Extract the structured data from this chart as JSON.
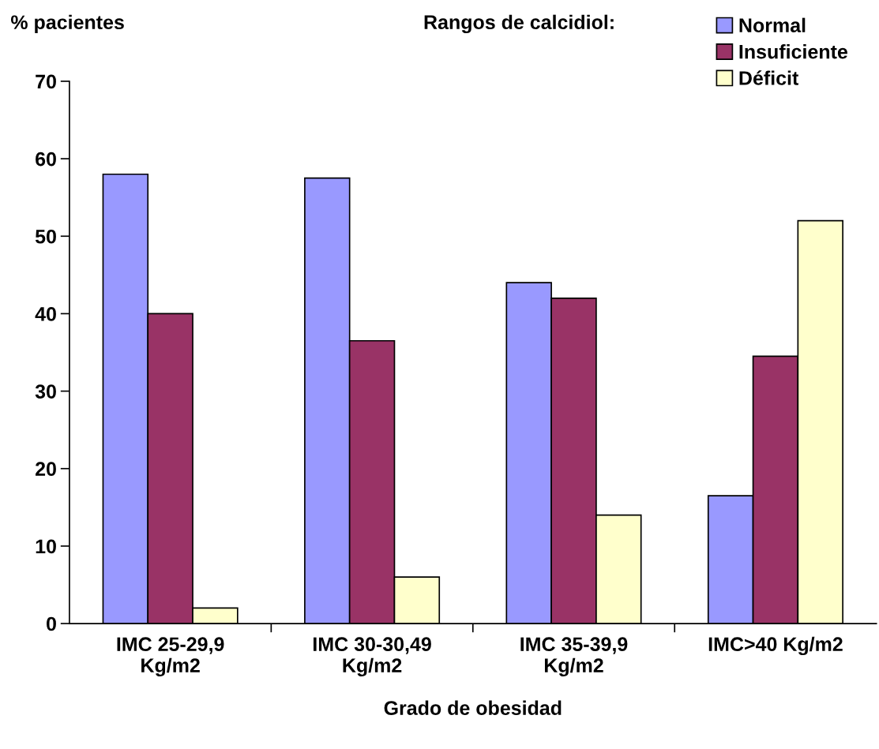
{
  "chart_data": {
    "type": "bar",
    "ylabel": "% pacientes",
    "xlabel": "Grado de obesidad",
    "legend_title": "Rangos de calcidiol:",
    "categories": [
      "IMC 25-29,9\nKg/m2",
      "IMC 30-30,49\nKg/m2",
      "IMC 35-39,9\nKg/m2",
      "IMC>40 Kg/m2"
    ],
    "series": [
      {
        "name": "Normal",
        "color": "#9999ff",
        "values": [
          58,
          57.5,
          44,
          16.5
        ]
      },
      {
        "name": "Insuficiente",
        "color": "#993366",
        "values": [
          40,
          36.5,
          42,
          34.5
        ]
      },
      {
        "name": "Déficit",
        "color": "#ffffcc",
        "values": [
          2,
          6,
          14,
          52
        ]
      }
    ],
    "ylim": [
      0,
      70
    ],
    "yticks": [
      0,
      10,
      20,
      30,
      40,
      50,
      60,
      70
    ],
    "grid": false,
    "legend": "top right"
  }
}
